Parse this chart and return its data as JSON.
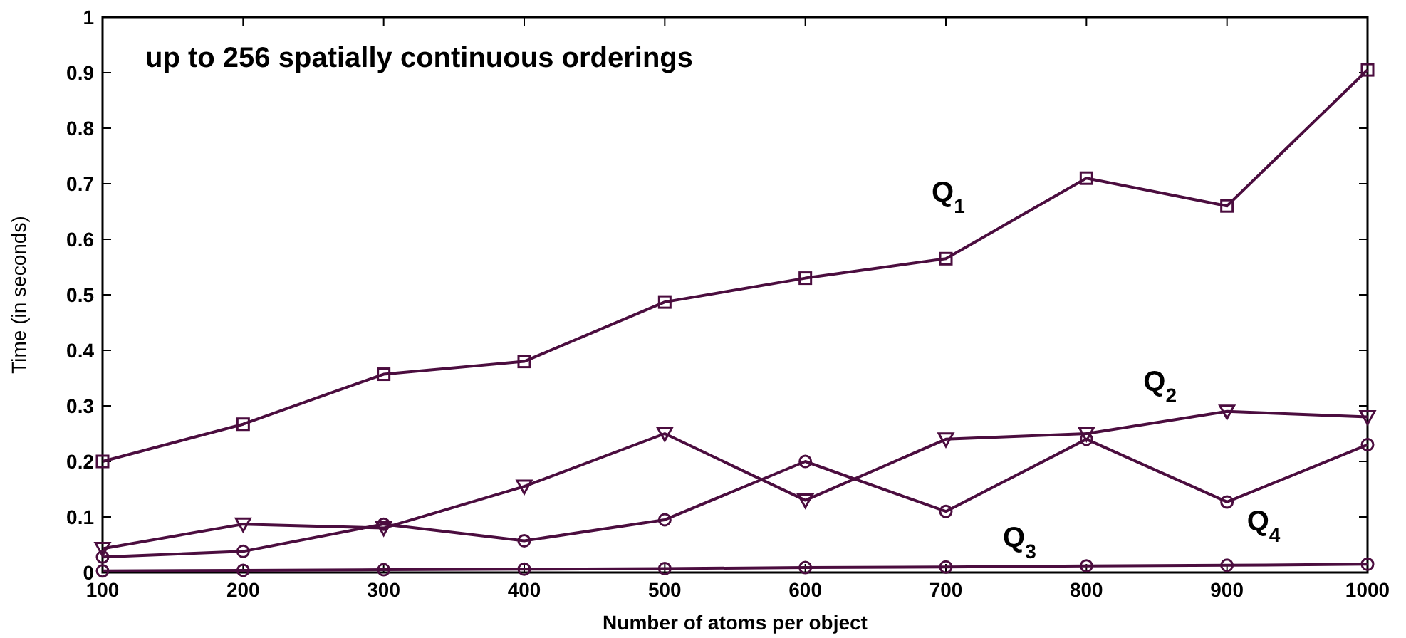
{
  "chart_data": {
    "type": "line",
    "title": "up to 256 spatially continuous orderings",
    "xlabel": "Number of atoms per object",
    "ylabel": "Time (in seconds)",
    "x": [
      100,
      200,
      300,
      400,
      500,
      600,
      700,
      800,
      900,
      1000
    ],
    "series": [
      {
        "name": "Q$_{1}$",
        "color": "#4b0d3f",
        "marker": "square",
        "values": [
          0.2,
          0.267,
          0.357,
          0.38,
          0.487,
          0.53,
          0.565,
          0.71,
          0.66,
          0.905
        ]
      },
      {
        "name": "Q$_{2}$",
        "color": "#4b0d3f",
        "marker": "triangle",
        "values": [
          0.043,
          0.087,
          0.08,
          0.155,
          0.25,
          0.13,
          0.24,
          0.25,
          0.29,
          0.28
        ]
      },
      {
        "name": "Q$_{3}$",
        "color": "#4b0d3f",
        "marker": "circle",
        "values": [
          0.003,
          0.004,
          0.005,
          0.006,
          0.007,
          0.009,
          0.01,
          0.012,
          0.013,
          0.015
        ]
      },
      {
        "name": "Q$_{4}$",
        "color": "#4b0d3f",
        "marker": "circle",
        "values": [
          0.028,
          0.038,
          0.087,
          0.057,
          0.095,
          0.2,
          0.11,
          0.24,
          0.127,
          0.23
        ]
      }
    ],
    "xlim": [
      100,
      1000
    ],
    "ylim": [
      0,
      1
    ],
    "xticks": [
      100,
      200,
      300,
      400,
      500,
      600,
      700,
      800,
      900,
      1000
    ],
    "yticks": [
      0,
      0.1,
      0.2,
      0.3,
      0.4,
      0.5,
      0.6,
      0.7,
      0.8,
      0.9,
      1
    ],
    "grid": false,
    "line_style": "solid"
  }
}
